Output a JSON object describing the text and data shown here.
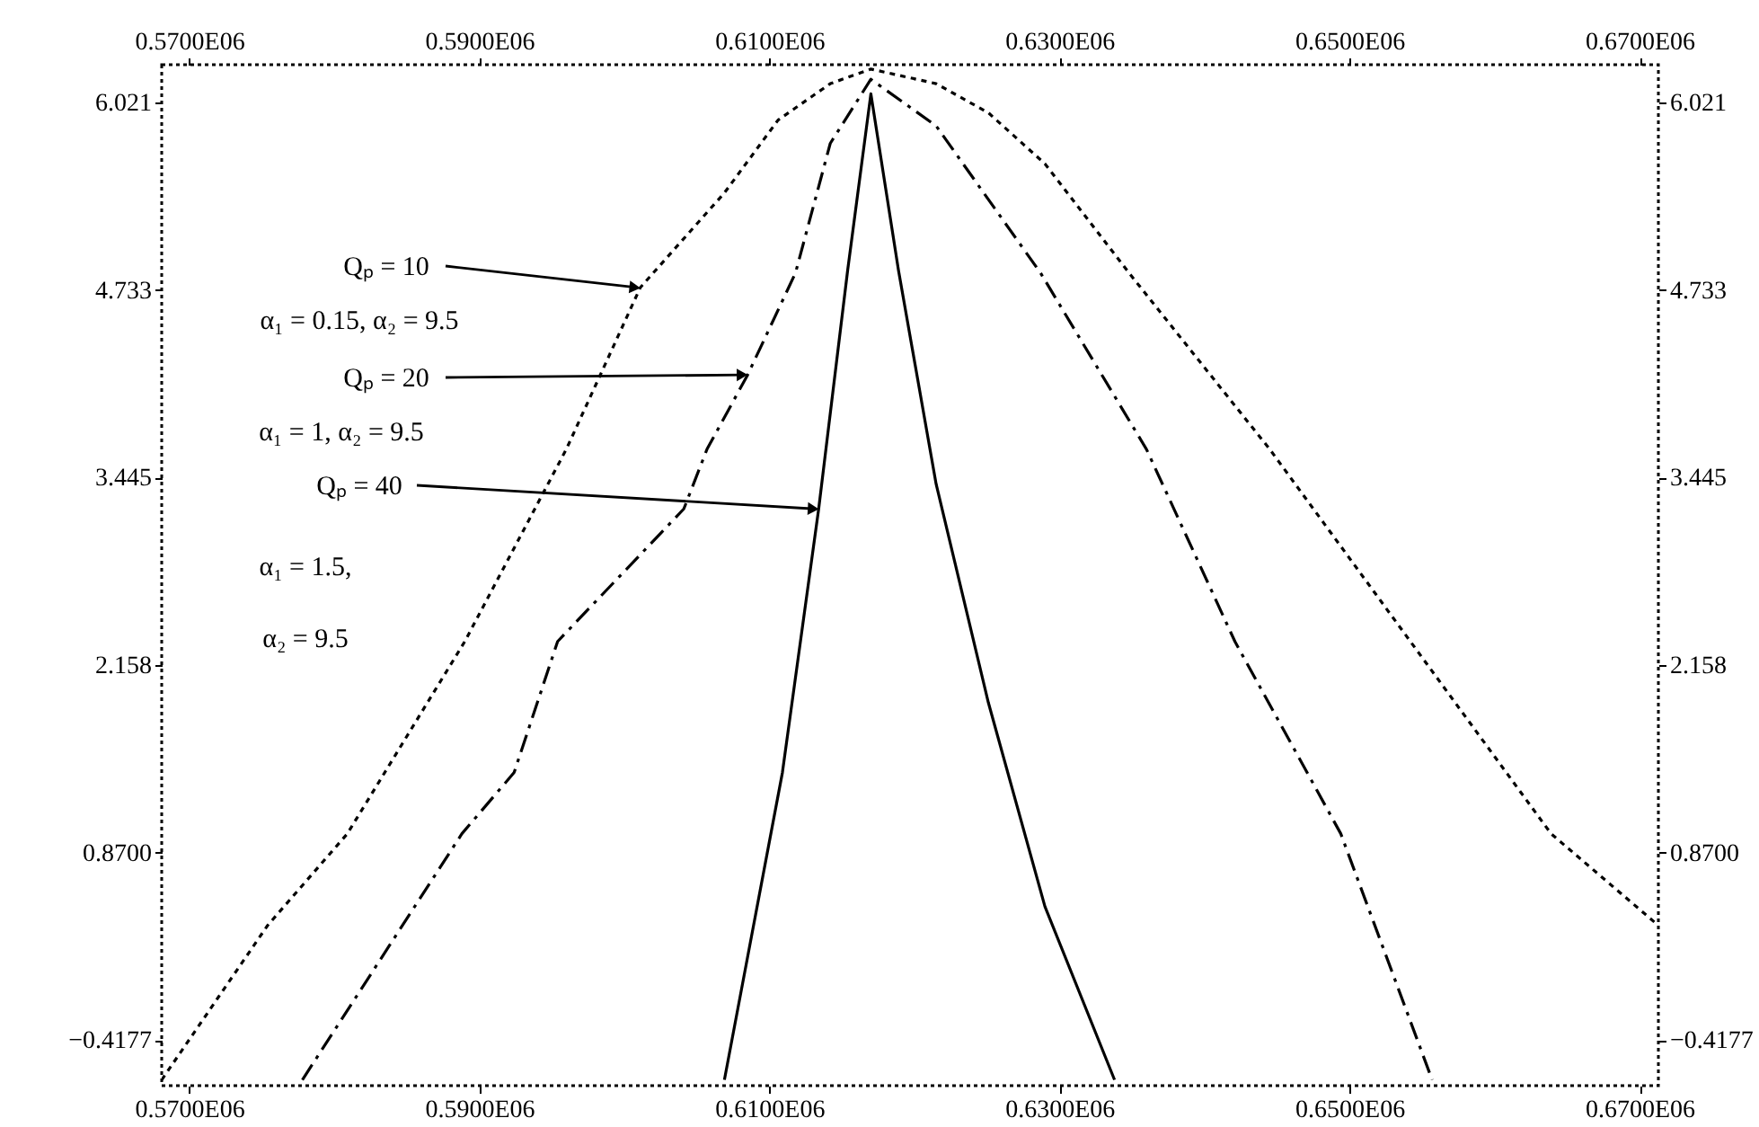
{
  "chart_data": {
    "type": "line",
    "xlim": [
      568100,
      671300
    ],
    "ylim": [
      -0.73,
      6.28
    ],
    "x2lim": [
      568100,
      671300
    ],
    "y2lim": [
      -0.73,
      6.28
    ],
    "xticks": [
      {
        "value": 570000,
        "label": "0.5700E06"
      },
      {
        "value": 590000,
        "label": "0.5900E06"
      },
      {
        "value": 610000,
        "label": "0.6100E06"
      },
      {
        "value": 630000,
        "label": "0.6300E06"
      },
      {
        "value": 650000,
        "label": "0.6500E06"
      },
      {
        "value": 670000,
        "label": "0.6700E06"
      }
    ],
    "x2ticks": [
      {
        "value": 570000,
        "label": "0.5700E06"
      },
      {
        "value": 590000,
        "label": "0.5900E06"
      },
      {
        "value": 610000,
        "label": "0.6100E06"
      },
      {
        "value": 630000,
        "label": "0.6300E06"
      },
      {
        "value": 650000,
        "label": "0.6500E06"
      },
      {
        "value": 670000,
        "label": "0.6700E06"
      }
    ],
    "yticks": [
      {
        "value": -0.4177,
        "label": "−0.4177"
      },
      {
        "value": 0.87,
        "label": "0.8700"
      },
      {
        "value": 2.158,
        "label": "2.158"
      },
      {
        "value": 3.445,
        "label": "3.445"
      },
      {
        "value": 4.733,
        "label": "4.733"
      },
      {
        "value": 6.021,
        "label": "6.021"
      }
    ],
    "y2ticks": [
      {
        "value": -0.4177,
        "label": "−0.4177"
      },
      {
        "value": 0.87,
        "label": "0.8700"
      },
      {
        "value": 2.158,
        "label": "2.158"
      },
      {
        "value": 3.445,
        "label": "3.445"
      },
      {
        "value": 4.733,
        "label": "4.733"
      },
      {
        "value": 6.021,
        "label": "6.021"
      }
    ],
    "grid": false,
    "marker": "none",
    "series": [
      {
        "color": "#000000",
        "line_style": "dotted",
        "x": [
          568100,
          575400,
          580900,
          589000,
          596000,
          601100,
          606900,
          610600,
          614200,
          617000,
          621500,
          625100,
          629000,
          634800,
          644500,
          654200,
          663900,
          671300
        ],
        "values": [
          -0.69,
          0.37,
          1.0,
          2.32,
          3.64,
          4.75,
          5.4,
          5.9,
          6.15,
          6.25,
          6.15,
          5.95,
          5.6,
          4.85,
          3.64,
          2.32,
          1.0,
          0.37
        ]
      },
      {
        "color": "#000000",
        "line_style": "dashed",
        "x": [
          577800,
          588800,
          592400,
          595400,
          604100,
          605700,
          608500,
          611800,
          614200,
          617000,
          621500,
          628700,
          636000,
          642100,
          649400,
          655700
        ],
        "values": [
          -0.69,
          1.0,
          1.42,
          2.32,
          3.23,
          3.64,
          4.15,
          4.85,
          5.74,
          6.18,
          5.86,
          4.85,
          3.64,
          2.32,
          1.0,
          -0.69
        ]
      },
      {
        "color": "#000000",
        "line_style": "solid",
        "x": [
          606900,
          610900,
          613400,
          615400,
          617000,
          618900,
          621500,
          625100,
          629000,
          633800
        ],
        "values": [
          -0.69,
          1.42,
          3.23,
          4.87,
          6.08,
          4.87,
          3.4,
          1.9,
          0.5,
          -0.69
        ]
      }
    ],
    "annotations": [
      {
        "text": "Qₚ = 10",
        "x": 601100,
        "y": 4.75
      },
      "α₁ = 0.15, α₂ = 9.5",
      {
        "text": "Qₚ = 20",
        "x": 608500,
        "y": 4.15
      },
      "α₁ = 1, α₂ = 9.5",
      {
        "text": "Qₚ = 40",
        "x": 613400,
        "y": 3.23
      },
      "α₁ = 1.5,",
      "α₂ = 9.5"
    ]
  }
}
